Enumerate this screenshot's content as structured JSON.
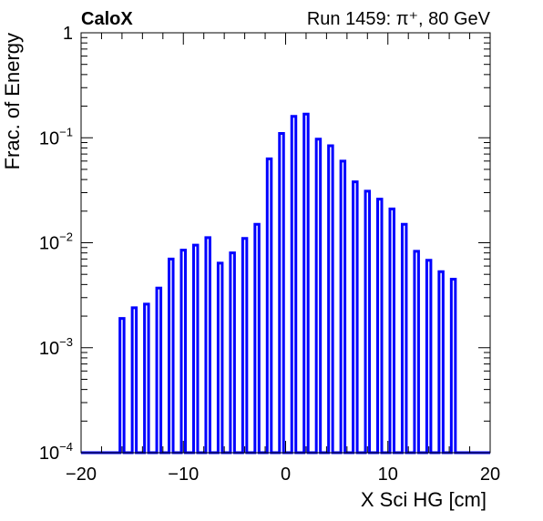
{
  "chart_data": {
    "type": "bar",
    "label_left": "CaloX",
    "label_right": "Run 1459:   π⁺, 80 GeV",
    "xlabel": "X Sci HG [cm]",
    "ylabel": "Frac. of Energy",
    "xlim": [
      -20,
      20
    ],
    "ylim": [
      0.0001,
      1
    ],
    "yscale": "log",
    "grid": false,
    "legend": "none",
    "bar_color": "#0000ff",
    "x_tick_labels": [
      {
        "value": -20,
        "label": "−20"
      },
      {
        "value": -10,
        "label": "−10"
      },
      {
        "value": 0,
        "label": "0"
      },
      {
        "value": 10,
        "label": "10"
      },
      {
        "value": 20,
        "label": "20"
      }
    ],
    "y_tick_labels": [
      {
        "exp": -4,
        "base": "10",
        "sup": "−4"
      },
      {
        "exp": -3,
        "base": "10",
        "sup": "−3"
      },
      {
        "exp": -2,
        "base": "10",
        "sup": "−2"
      },
      {
        "exp": -1,
        "base": "10",
        "sup": "−1"
      },
      {
        "exp": 0,
        "base": "1",
        "sup": ""
      }
    ],
    "bar_width": 0.4,
    "x": [
      -16.0,
      -14.8,
      -13.6,
      -12.4,
      -11.2,
      -10.0,
      -8.8,
      -7.6,
      -6.4,
      -5.2,
      -4.0,
      -2.8,
      -1.6,
      -0.4,
      0.8,
      2.0,
      3.2,
      4.4,
      5.6,
      6.8,
      8.0,
      9.2,
      10.4,
      11.6,
      12.8,
      14.0,
      15.2,
      16.4
    ],
    "values": [
      0.0019,
      0.0024,
      0.0026,
      0.0037,
      0.007,
      0.0085,
      0.0095,
      0.0112,
      0.0064,
      0.008,
      0.011,
      0.015,
      0.063,
      0.11,
      0.16,
      0.168,
      0.097,
      0.084,
      0.06,
      0.038,
      0.031,
      0.026,
      0.021,
      0.015,
      0.0083,
      0.0068,
      0.0053,
      0.0045
    ]
  }
}
